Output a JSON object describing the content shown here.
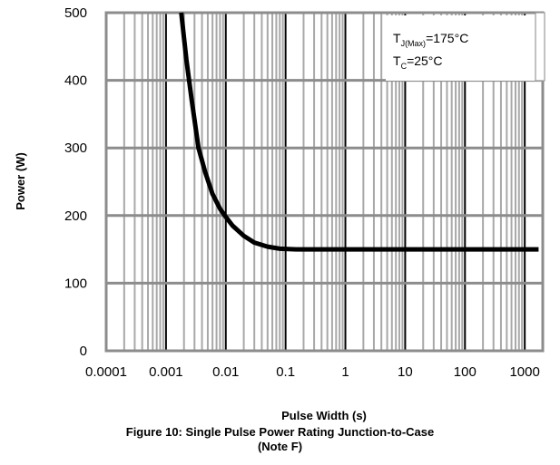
{
  "chart_data": {
    "type": "line",
    "xlabel": "Pulse Width (s)",
    "ylabel": "Power (W)",
    "x_scale": "log",
    "xlim": [
      0.0001,
      2000
    ],
    "ylim": [
      0,
      500
    ],
    "x_ticks": [
      0.0001,
      0.001,
      0.01,
      0.1,
      1,
      10,
      100,
      1000
    ],
    "x_tick_labels": [
      "0.0001",
      "0.001",
      "0.01",
      "0.1",
      "1",
      "10",
      "100",
      "1000"
    ],
    "y_ticks": [
      0,
      100,
      200,
      300,
      400,
      500
    ],
    "y_tick_labels": [
      "0",
      "100",
      "200",
      "300",
      "400",
      "500"
    ],
    "grid": true,
    "series": [
      {
        "x": [
          0.0018,
          0.0022,
          0.0027,
          0.0035,
          0.0045,
          0.006,
          0.008,
          0.01,
          0.013,
          0.02,
          0.03,
          0.05,
          0.08,
          0.15,
          0.5,
          1,
          10,
          100,
          1000,
          1700
        ],
        "values": [
          500,
          430,
          370,
          300,
          265,
          232,
          210,
          198,
          185,
          170,
          160,
          154,
          151,
          150,
          150,
          150,
          150,
          150,
          150,
          150
        ]
      }
    ],
    "annotations": {
      "tj_main": "T",
      "tj_sub": "J(Max)",
      "tj_rest": "=175°C",
      "tc_main": "T",
      "tc_sub": "C",
      "tc_rest": "=25°C"
    }
  },
  "caption": {
    "line1": "Figure 10: Single Pulse Power Rating Junction-to-Case",
    "line2": "(Note F)"
  }
}
